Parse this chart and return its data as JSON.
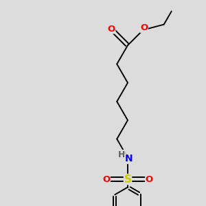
{
  "bg_color": "#dcdcdc",
  "bond_color": "#000000",
  "atom_colors": {
    "O": "#ff0000",
    "N": "#0000ff",
    "S": "#cccc00",
    "Cl": "#00bb00",
    "H": "#606060"
  },
  "bond_lw": 1.4,
  "figsize": [
    3.0,
    3.0
  ],
  "dpi": 100
}
